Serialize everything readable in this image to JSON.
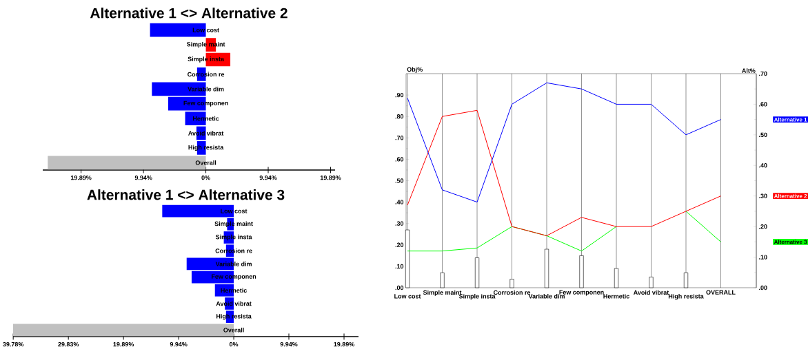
{
  "chart_data": [
    {
      "type": "bar",
      "orientation": "horizontal",
      "title": "Alternative 1 <> Alternative 2",
      "categories": [
        "Low cost",
        "Simple maint",
        "Simple insta",
        "Corrosion re",
        "Variable dim",
        "Few componen",
        "Hermetic",
        "Avoid vibrat",
        "High resista",
        "Overall"
      ],
      "values": [
        -8.9,
        1.6,
        3.9,
        -1.4,
        -8.6,
        -6.0,
        -3.3,
        -1.5,
        -1.4,
        -25.2
      ],
      "colors": [
        "#0000ff",
        "#ff0000",
        "#ff0000",
        "#0000ff",
        "#0000ff",
        "#0000ff",
        "#0000ff",
        "#0000ff",
        "#0000ff",
        "#c0c0c0"
      ],
      "xlim": [
        -26.0,
        20.6
      ],
      "xticks": [
        {
          "value": -19.89,
          "label": "19.89%"
        },
        {
          "value": -9.94,
          "label": "9.94%"
        },
        {
          "value": 0,
          "label": "0%"
        },
        {
          "value": 9.94,
          "label": "9.94%"
        },
        {
          "value": 19.89,
          "label": "19.89%"
        }
      ]
    },
    {
      "type": "bar",
      "orientation": "horizontal",
      "title": "Alternative 1 <> Alternative 3",
      "categories": [
        "Low cost",
        "Simple maint",
        "Simple insta",
        "Corrosion re",
        "Variable dim",
        "Few componen",
        "Hermetic",
        "Avoid vibrat",
        "High resista",
        "Overall"
      ],
      "values": [
        -12.9,
        -1.2,
        -1.8,
        -1.4,
        -8.5,
        -7.6,
        -3.4,
        -1.6,
        -1.4,
        -39.8
      ],
      "colors": [
        "#0000ff",
        "#0000ff",
        "#0000ff",
        "#0000ff",
        "#0000ff",
        "#0000ff",
        "#0000ff",
        "#0000ff",
        "#0000ff",
        "#c0c0c0"
      ],
      "xlim": [
        -39.8,
        22.5
      ],
      "xticks": [
        {
          "value": -39.78,
          "label": "39.78%"
        },
        {
          "value": -29.83,
          "label": "29.83%"
        },
        {
          "value": -19.89,
          "label": "19.89%"
        },
        {
          "value": -9.94,
          "label": "9.94%"
        },
        {
          "value": 0,
          "label": "0%"
        },
        {
          "value": 9.94,
          "label": "9.94%"
        },
        {
          "value": 19.89,
          "label": "19.89%"
        }
      ]
    },
    {
      "type": "line",
      "ylabel": "Obj%",
      "y2label": "Alt%",
      "grid": "x",
      "categories": [
        "Low cost",
        "Simple maint",
        "Simple insta",
        "Corrosion re",
        "Variable dim",
        "Few componen",
        "Hermetic",
        "Avoid vibrat",
        "High resista",
        "OVERALL"
      ],
      "ylim": [
        0,
        1.0
      ],
      "yticks": [
        {
          "value": 0,
          "label": ".00"
        },
        {
          "value": 0.1,
          "label": ".10"
        },
        {
          "value": 0.2,
          "label": ".20"
        },
        {
          "value": 0.3,
          "label": ".30"
        },
        {
          "value": 0.4,
          "label": ".40"
        },
        {
          "value": 0.5,
          "label": ".50"
        },
        {
          "value": 0.6,
          "label": ".60"
        },
        {
          "value": 0.7,
          "label": ".70"
        },
        {
          "value": 0.8,
          "label": ".80"
        },
        {
          "value": 0.9,
          "label": ".90"
        }
      ],
      "y2lim": [
        0,
        0.7
      ],
      "y2ticks": [
        {
          "value": 0,
          "label": ".00"
        },
        {
          "value": 0.1,
          "label": ".10"
        },
        {
          "value": 0.2,
          "label": ".20"
        },
        {
          "value": 0.3,
          "label": ".30"
        },
        {
          "value": 0.4,
          "label": ".40"
        },
        {
          "value": 0.5,
          "label": ".50"
        },
        {
          "value": 0.6,
          "label": ".60"
        },
        {
          "value": 0.7,
          "label": ".70"
        }
      ],
      "series": [
        {
          "type": "bar",
          "color": "#ffffff",
          "values": [
            0.27,
            0.07,
            0.14,
            0.04,
            0.18,
            0.15,
            0.09,
            0.05,
            0.07,
            null
          ]
        },
        {
          "name": "Alternative 1",
          "color": "#0000ff",
          "axis": "y2",
          "values": [
            0.62,
            0.32,
            0.28,
            0.6,
            0.67,
            0.65,
            0.6,
            0.6,
            0.5,
            0.55
          ]
        },
        {
          "name": "Alternative 2",
          "color": "#ff0000",
          "axis": "y2",
          "values": [
            0.27,
            0.56,
            0.58,
            0.2,
            0.17,
            0.23,
            0.2,
            0.2,
            0.25,
            0.3
          ]
        },
        {
          "name": "Alternative 3",
          "color": "#00ff00",
          "axis": "y2",
          "values": [
            0.12,
            0.12,
            0.13,
            0.2,
            0.17,
            0.12,
            0.2,
            null,
            0.25,
            0.15
          ]
        }
      ]
    }
  ]
}
